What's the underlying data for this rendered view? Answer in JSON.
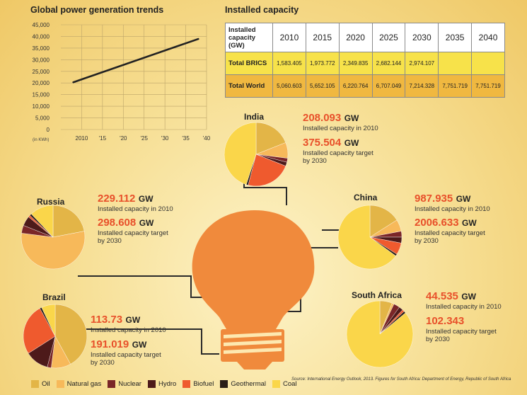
{
  "colors": {
    "oil": "#e3b547",
    "natural_gas": "#f7b95a",
    "nuclear": "#7a2628",
    "hydro": "#4d1a1a",
    "biofuel": "#ef5a2e",
    "geothermal": "#2a1e18",
    "coal": "#fad64a",
    "bulb": "#f08a3c",
    "line": "#222222"
  },
  "chart_data": [
    {
      "type": "line",
      "title": "Global power generation trends",
      "ylabel": "(in KWh)",
      "ylim": [
        0,
        45000
      ],
      "yticks": [
        "45,000",
        "40,000",
        "35,000",
        "30,000",
        "25,000",
        "20,000",
        "15,000",
        "10,000",
        "5,000",
        "0"
      ],
      "xticks": [
        "2010",
        "'15",
        "'20",
        "'25",
        "'30",
        "'35",
        "'40"
      ],
      "series": [
        {
          "name": "Global power generation",
          "x": [
            2008,
            2038
          ],
          "y": [
            20300,
            38900
          ]
        }
      ]
    },
    {
      "type": "table",
      "title": "Installed capacity",
      "columns": [
        "Installed capacity (GW)",
        "2010",
        "2015",
        "2020",
        "2025",
        "2030",
        "2035",
        "2040"
      ],
      "rows": [
        {
          "label": "Total BRICS",
          "values": [
            "1,583.405",
            "1,973.772",
            "2,349.835",
            "2,682.144",
            "2,974.107",
            "",
            ""
          ]
        },
        {
          "label": "Total World",
          "values": [
            "5,060.603",
            "5,652.105",
            "6,220.764",
            "6,707.049",
            "7,214.328",
            "7,751.719",
            "7,751.719"
          ]
        }
      ]
    },
    {
      "type": "pie",
      "legend": [
        "Oil",
        "Natural gas",
        "Nuclear",
        "Hydro",
        "Biofuel",
        "Geothermal",
        "Coal"
      ],
      "pies": [
        {
          "name": "India",
          "slices": [
            {
              "label": "Oil",
              "value": 19
            },
            {
              "label": "Natural gas",
              "value": 8
            },
            {
              "label": "Nuclear",
              "value": 2
            },
            {
              "label": "Hydro",
              "value": 2
            },
            {
              "label": "Biofuel",
              "value": 23
            },
            {
              "label": "Geothermal",
              "value": 1
            },
            {
              "label": "Coal",
              "value": 45
            }
          ]
        },
        {
          "name": "China",
          "slices": [
            {
              "label": "Oil",
              "value": 16
            },
            {
              "label": "Natural gas",
              "value": 6
            },
            {
              "label": "Nuclear",
              "value": 3
            },
            {
              "label": "Hydro",
              "value": 3
            },
            {
              "label": "Biofuel",
              "value": 6
            },
            {
              "label": "Geothermal",
              "value": 1
            },
            {
              "label": "Coal",
              "value": 65
            }
          ]
        },
        {
          "name": "Russia",
          "slices": [
            {
              "label": "Oil",
              "value": 22
            },
            {
              "label": "Natural gas",
              "value": 55
            },
            {
              "label": "Nuclear",
              "value": 4
            },
            {
              "label": "Hydro",
              "value": 5
            },
            {
              "label": "Biofuel",
              "value": 1
            },
            {
              "label": "Geothermal",
              "value": 1
            },
            {
              "label": "Coal",
              "value": 12
            }
          ]
        },
        {
          "name": "Brazil",
          "slices": [
            {
              "label": "Oil",
              "value": 42
            },
            {
              "label": "Natural gas",
              "value": 10
            },
            {
              "label": "Nuclear",
              "value": 2
            },
            {
              "label": "Hydro",
              "value": 12
            },
            {
              "label": "Biofuel",
              "value": 26
            },
            {
              "label": "Geothermal",
              "value": 1
            },
            {
              "label": "Coal",
              "value": 7
            }
          ]
        },
        {
          "name": "South Africa",
          "slices": [
            {
              "label": "Oil",
              "value": 6
            },
            {
              "label": "Natural gas",
              "value": 1
            },
            {
              "label": "Nuclear",
              "value": 3
            },
            {
              "label": "Hydro",
              "value": 2
            },
            {
              "label": "Biofuel",
              "value": 1
            },
            {
              "label": "Geothermal",
              "value": 1
            },
            {
              "label": "Coal",
              "value": 86
            }
          ]
        }
      ]
    }
  ],
  "countries": {
    "india": {
      "name": "India",
      "cap2010": "208.093",
      "cap2030": "375.504"
    },
    "china": {
      "name": "China",
      "cap2010": "987.935",
      "cap2030": "2006.633"
    },
    "russia": {
      "name": "Russia",
      "cap2010": "229.112",
      "cap2030": "298.608"
    },
    "brazil": {
      "name": "Brazil",
      "cap2010": "113.73",
      "cap2030": "191.019"
    },
    "south_africa": {
      "name": "South Africa",
      "cap2010": "44.535",
      "cap2030": "102.343"
    }
  },
  "labels": {
    "gw": "GW",
    "cap2010_text": "Installed capacity in 2010",
    "cap2030_line1": "Installed capacity target",
    "cap2030_line2": "by 2030"
  },
  "source": "Source: International Energy Outlook, 2013. Figures for South Africa: Department of Energy, Republic of South Africa"
}
